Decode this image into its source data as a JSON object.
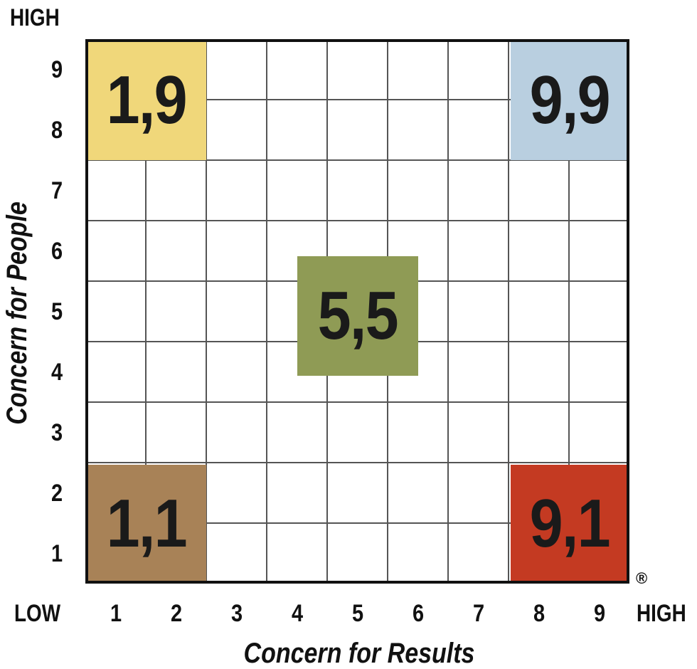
{
  "y_axis": {
    "title": "Concern for People",
    "high_label": "HIGH",
    "ticks": [
      "1",
      "2",
      "3",
      "4",
      "5",
      "6",
      "7",
      "8",
      "9"
    ]
  },
  "x_axis": {
    "title": "Concern for Results",
    "low_label": "LOW",
    "high_label": "HIGH",
    "ticks": [
      "1",
      "2",
      "3",
      "4",
      "5",
      "6",
      "7",
      "8",
      "9"
    ]
  },
  "regions": [
    {
      "id": "region-1-9",
      "label": "1,9",
      "color": "#f0d77a"
    },
    {
      "id": "region-9-9",
      "label": "9,9",
      "color": "#b9cfe0"
    },
    {
      "id": "region-5-5",
      "label": "5,5",
      "color": "#8f9b55"
    },
    {
      "id": "region-1-1",
      "label": "1,1",
      "color": "#a88257"
    },
    {
      "id": "region-9-1",
      "label": "9,1",
      "color": "#c43a22"
    }
  ],
  "registered_mark": "®",
  "grid_color": "#555555"
}
